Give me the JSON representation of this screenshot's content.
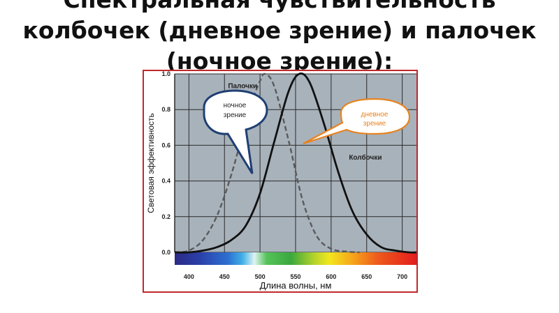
{
  "slide": {
    "title_lines": [
      "Спектральная чувствительность",
      "колбочек (дневное зрение) и палочек",
      "(ночное зрение):"
    ]
  },
  "chart_data": {
    "type": "line",
    "xlabel": "Длина волны, нм",
    "ylabel": "Световая эффективность",
    "xlim": [
      380,
      720
    ],
    "ylim": [
      0,
      1.0
    ],
    "xticks": [
      400,
      450,
      500,
      550,
      600,
      650,
      700
    ],
    "yticks": [
      0.0,
      0.2,
      0.4,
      0.6,
      0.8,
      1.0
    ],
    "grid": true,
    "series": [
      {
        "name": "Палочки",
        "style": "dashed",
        "color": "#5a5a5a",
        "x": [
          380,
          400,
          420,
          440,
          460,
          480,
          490,
          500,
          507,
          520,
          540,
          560,
          580,
          600,
          620,
          640
        ],
        "y": [
          0.0,
          0.01,
          0.07,
          0.21,
          0.44,
          0.73,
          0.86,
          0.96,
          1.0,
          0.93,
          0.63,
          0.29,
          0.09,
          0.02,
          0.005,
          0.0
        ]
      },
      {
        "name": "Колбочки",
        "style": "solid",
        "color": "#111111",
        "x": [
          380,
          400,
          420,
          440,
          460,
          480,
          500,
          520,
          540,
          555,
          570,
          590,
          610,
          630,
          650,
          670,
          690,
          710,
          720
        ],
        "y": [
          0.0,
          0.0,
          0.01,
          0.03,
          0.07,
          0.15,
          0.33,
          0.62,
          0.9,
          1.0,
          0.95,
          0.72,
          0.45,
          0.23,
          0.1,
          0.03,
          0.01,
          0.0,
          0.0
        ]
      }
    ],
    "annotations": [
      {
        "text": "Палочки",
        "x": 455,
        "y": 0.92
      },
      {
        "text": "Колбочки",
        "x": 625,
        "y": 0.52
      }
    ],
    "callouts": [
      {
        "lines": [
          "ночное",
          "зрение"
        ],
        "border_color": "#1f3f73",
        "text_color": "#222222"
      },
      {
        "lines": [
          "дневное",
          "зрение"
        ],
        "border_color": "#e8821e",
        "text_color": "#e8821e"
      }
    ],
    "colors": {
      "plot_background": "#a8b2bb",
      "grid": "#2b2b2b",
      "frame": "#c0282b"
    }
  }
}
